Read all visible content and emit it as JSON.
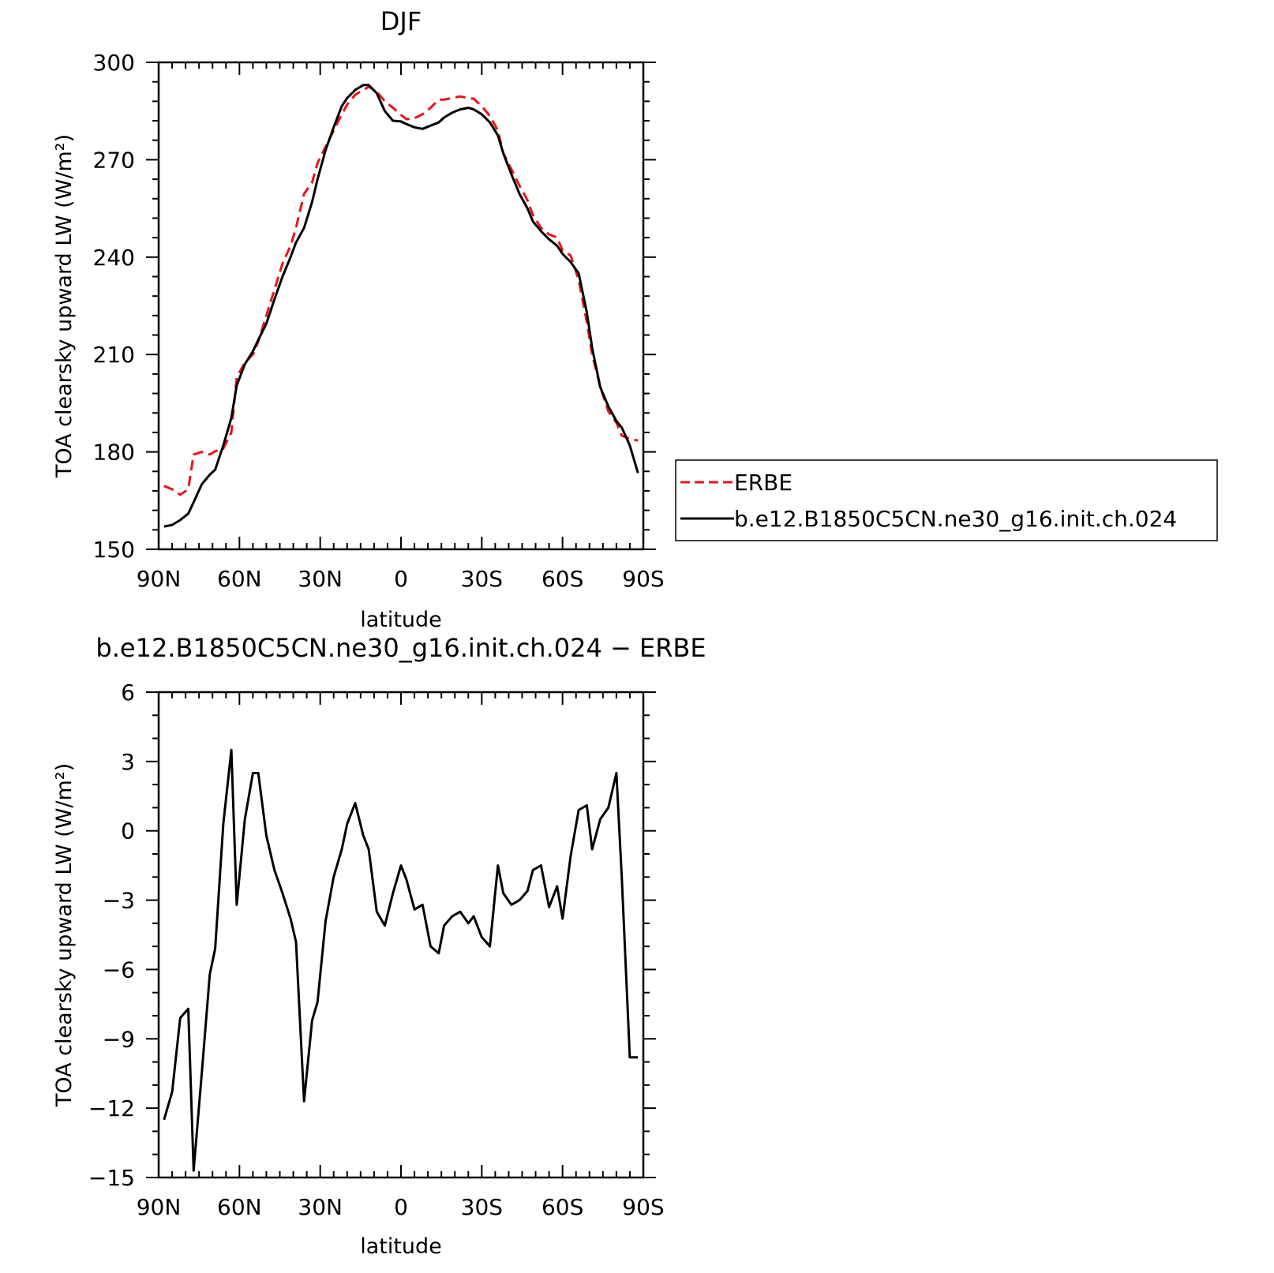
{
  "chart_data": [
    {
      "type": "line",
      "title": "DJF",
      "xlabel": "latitude",
      "ylabel": "TOA clearsky upward LW (W/m²)",
      "xlim": [
        -90,
        90
      ],
      "ylim": [
        150,
        300
      ],
      "x_ticks": [
        -90,
        -60,
        -30,
        0,
        30,
        60,
        90
      ],
      "x_tick_labels": [
        "90N",
        "60N",
        "30N",
        "0",
        "30S",
        "60S",
        "90S"
      ],
      "y_ticks": [
        150,
        180,
        210,
        240,
        270,
        300
      ],
      "y_tick_labels": [
        "150",
        "180",
        "210",
        "240",
        "270",
        "300"
      ],
      "legend": {
        "placement": "right",
        "entries": [
          "ERBE",
          "b.e12.B1850C5CN.ne30_g16.init.ch.024"
        ]
      },
      "series": [
        {
          "name": "ERBE",
          "color": "#e8141b",
          "dash": "dashed",
          "x": [
            -88,
            -85,
            -82,
            -79,
            -77,
            -74,
            -71,
            -69,
            -66,
            -63,
            -61,
            -58,
            -55,
            -53,
            -50,
            -47,
            -44,
            -41,
            -39,
            -36,
            -33,
            -31,
            -28,
            -25,
            -22,
            -20,
            -17,
            -14,
            -12,
            -9,
            -6,
            -3,
            0,
            2,
            5,
            8,
            11,
            14,
            16,
            19,
            22,
            25,
            27,
            30,
            33,
            36,
            38,
            41,
            44,
            47,
            49,
            52,
            55,
            58,
            60,
            63,
            66,
            69,
            71,
            74,
            77,
            80,
            82,
            85,
            88
          ],
          "y": [
            169.5,
            168.5,
            166.8,
            168.5,
            179.2,
            180.0,
            179.2,
            180.2,
            181.0,
            186.0,
            203.0,
            207.5,
            210.0,
            214.0,
            222.0,
            230.0,
            238.0,
            243.5,
            249.0,
            259.5,
            263.0,
            269.0,
            274.0,
            279.0,
            284.0,
            287.0,
            290.0,
            291.5,
            292.5,
            291.0,
            288.0,
            286.0,
            283.8,
            282.5,
            282.8,
            284.0,
            286.0,
            288.5,
            288.5,
            289.0,
            289.5,
            289.0,
            288.8,
            286.5,
            283.5,
            279.0,
            272.0,
            267.0,
            262.0,
            257.5,
            253.0,
            249.0,
            247.0,
            246.0,
            242.0,
            240.5,
            233.0,
            220.0,
            210.0,
            200.0,
            192.5,
            189.0,
            185.0,
            184.0,
            183.5
          ]
        },
        {
          "name": "b.e12.B1850C5CN.ne30_g16.init.ch.024",
          "color": "#000000",
          "dash": "solid",
          "x": [
            -88,
            -85,
            -82,
            -79,
            -77,
            -74,
            -71,
            -69,
            -66,
            -63,
            -61,
            -58,
            -55,
            -53,
            -50,
            -47,
            -44,
            -41,
            -39,
            -36,
            -33,
            -31,
            -28,
            -25,
            -22,
            -20,
            -17,
            -14,
            -12,
            -9,
            -6,
            -3,
            0,
            2,
            5,
            8,
            11,
            14,
            16,
            19,
            22,
            25,
            27,
            30,
            33,
            36,
            38,
            41,
            44,
            47,
            49,
            52,
            55,
            58,
            60,
            63,
            66,
            69,
            71,
            74,
            77,
            80,
            82,
            85,
            88
          ],
          "y": [
            157.0,
            157.5,
            159.0,
            161.0,
            164.5,
            170.0,
            173.0,
            174.5,
            182.0,
            190.5,
            200.5,
            207.0,
            211.0,
            214.5,
            219.5,
            227.0,
            234.0,
            240.0,
            244.5,
            249.0,
            257.0,
            264.0,
            273.0,
            280.0,
            286.5,
            289.0,
            291.5,
            293.0,
            293.0,
            290.5,
            285.0,
            282.0,
            281.8,
            281.0,
            280.0,
            279.5,
            280.5,
            281.5,
            283.0,
            284.5,
            285.5,
            286.0,
            285.5,
            284.0,
            281.5,
            277.5,
            272.0,
            265.5,
            259.5,
            255.0,
            251.0,
            248.0,
            245.5,
            243.5,
            241.0,
            238.5,
            235.0,
            223.0,
            212.0,
            200.0,
            194.0,
            189.5,
            187.5,
            182.0,
            173.5
          ]
        }
      ]
    },
    {
      "type": "line",
      "title": "b.e12.B1850C5CN.ne30_g16.init.ch.024 − ERBE",
      "xlabel": "latitude",
      "ylabel": "TOA clearsky upward LW (W/m²)",
      "xlim": [
        -90,
        90
      ],
      "ylim": [
        -15,
        6
      ],
      "x_ticks": [
        -90,
        -60,
        -30,
        0,
        30,
        60,
        90
      ],
      "x_tick_labels": [
        "90N",
        "60N",
        "30N",
        "0",
        "30S",
        "60S",
        "90S"
      ],
      "y_ticks": [
        -15,
        -12,
        -9,
        -6,
        -3,
        0,
        3,
        6
      ],
      "y_tick_labels": [
        "−15",
        "−12",
        "−9",
        "−6",
        "−3",
        "0",
        "3",
        "6"
      ],
      "series": [
        {
          "color": "#000000",
          "dash": "solid",
          "x": [
            -88,
            -85,
            -82,
            -79,
            -77,
            -74,
            -71,
            -69,
            -66,
            -63,
            -61,
            -58,
            -55,
            -53,
            -50,
            -47,
            -44,
            -41,
            -39,
            -36,
            -33,
            -31,
            -28,
            -25,
            -22,
            -20,
            -17,
            -14,
            -12,
            -9,
            -6,
            -3,
            0,
            2,
            5,
            8,
            11,
            14,
            16,
            19,
            22,
            25,
            27,
            30,
            33,
            36,
            38,
            41,
            44,
            47,
            49,
            52,
            55,
            58,
            60,
            63,
            66,
            69,
            71,
            74,
            77,
            80,
            82,
            85,
            88
          ],
          "y": [
            -12.5,
            -11.3,
            -8.1,
            -7.7,
            -14.7,
            -10.5,
            -6.2,
            -5.1,
            0.3,
            3.5,
            -3.2,
            0.5,
            2.5,
            2.5,
            -0.2,
            -1.7,
            -2.7,
            -3.8,
            -4.8,
            -11.7,
            -8.2,
            -7.4,
            -3.9,
            -2.0,
            -0.8,
            0.3,
            1.2,
            -0.2,
            -0.8,
            -3.5,
            -4.1,
            -2.7,
            -1.5,
            -2.1,
            -3.4,
            -3.2,
            -5.0,
            -5.3,
            -4.1,
            -3.7,
            -3.5,
            -4.0,
            -3.7,
            -4.6,
            -5.0,
            -1.5,
            -2.7,
            -3.2,
            -3.0,
            -2.6,
            -1.7,
            -1.5,
            -3.3,
            -2.4,
            -3.8,
            -1.1,
            0.9,
            1.1,
            -0.8,
            0.5,
            1.0,
            2.5,
            -2.0,
            -9.8,
            -9.8
          ]
        }
      ]
    }
  ]
}
